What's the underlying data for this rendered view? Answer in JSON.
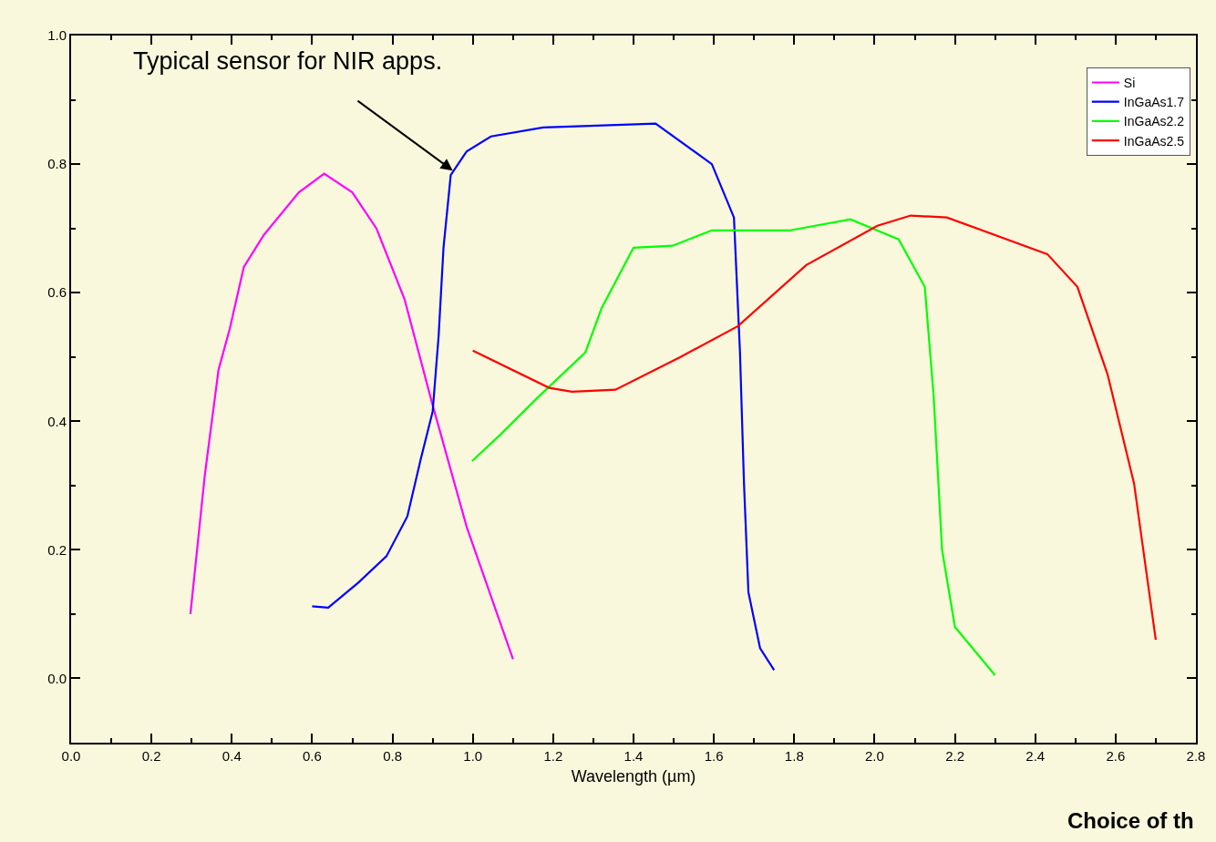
{
  "chart_data": {
    "type": "line",
    "xlabel": "Wavelength (µm)",
    "xlim": [
      0,
      2.8
    ],
    "xticks": [
      {
        "value": 0,
        "label": "0.0"
      },
      0.2,
      0.4,
      0.6,
      0.8,
      {
        "value": 1,
        "label": "1.0"
      },
      1.2,
      1.4,
      1.6,
      1.8,
      {
        "value": 2,
        "label": "2.0"
      },
      2.2,
      2.4,
      2.6,
      2.8
    ],
    "ylim": [
      -0.1,
      1.0
    ],
    "yticks": [
      {
        "value": 0,
        "label": "0.0"
      },
      0.2,
      0.4,
      0.6,
      0.8,
      {
        "value": 1,
        "label": "1.0"
      }
    ],
    "grid": false,
    "legend": "top right",
    "marker": "none",
    "line_style": "solid",
    "series": [
      {
        "name": "Si",
        "color": "#ff00ff",
        "x": [
          0.297,
          0.333,
          0.367,
          0.395,
          0.43,
          0.48,
          0.567,
          0.63,
          0.7,
          0.76,
          0.83,
          0.9,
          0.985,
          1.1
        ],
        "values": [
          0.1,
          0.317,
          0.48,
          0.544,
          0.64,
          0.69,
          0.756,
          0.785,
          0.756,
          0.7,
          0.59,
          0.425,
          0.235,
          0.03
        ]
      },
      {
        "name": "InGaAs1.7",
        "color": "#0000ff",
        "x": [
          0.6,
          0.64,
          0.715,
          0.785,
          0.837,
          0.87,
          0.9,
          0.915,
          0.927,
          0.945,
          0.985,
          1.045,
          1.175,
          1.455,
          1.595,
          1.65,
          1.665,
          1.675,
          1.686,
          1.715,
          1.75
        ],
        "values": [
          0.112,
          0.11,
          0.149,
          0.19,
          0.252,
          0.34,
          0.415,
          0.534,
          0.67,
          0.783,
          0.82,
          0.843,
          0.857,
          0.863,
          0.8,
          0.717,
          0.507,
          0.303,
          0.134,
          0.047,
          0.013
        ]
      },
      {
        "name": "InGaAs2.2",
        "color": "#00ff00",
        "x": [
          0.998,
          1.07,
          1.16,
          1.28,
          1.32,
          1.4,
          1.497,
          1.595,
          1.79,
          1.94,
          2.06,
          2.125,
          2.147,
          2.168,
          2.2,
          2.3
        ],
        "values": [
          0.338,
          0.38,
          0.436,
          0.507,
          0.575,
          0.67,
          0.673,
          0.697,
          0.697,
          0.714,
          0.683,
          0.609,
          0.44,
          0.2,
          0.08,
          0.005
        ]
      },
      {
        "name": "InGaAs2.5",
        "color": "#ff0000",
        "x": [
          1.0,
          1.19,
          1.247,
          1.355,
          1.517,
          1.66,
          1.83,
          2.007,
          2.09,
          2.18,
          2.43,
          2.505,
          2.58,
          2.646,
          2.7
        ],
        "values": [
          0.51,
          0.452,
          0.446,
          0.449,
          0.5,
          0.548,
          0.643,
          0.704,
          0.72,
          0.717,
          0.66,
          0.609,
          0.473,
          0.303,
          0.06
        ]
      }
    ],
    "annotations": [
      {
        "text": "Typical sensor for NIR apps.",
        "x": 0.95,
        "y": 0.79
      },
      "Choice of th"
    ]
  }
}
